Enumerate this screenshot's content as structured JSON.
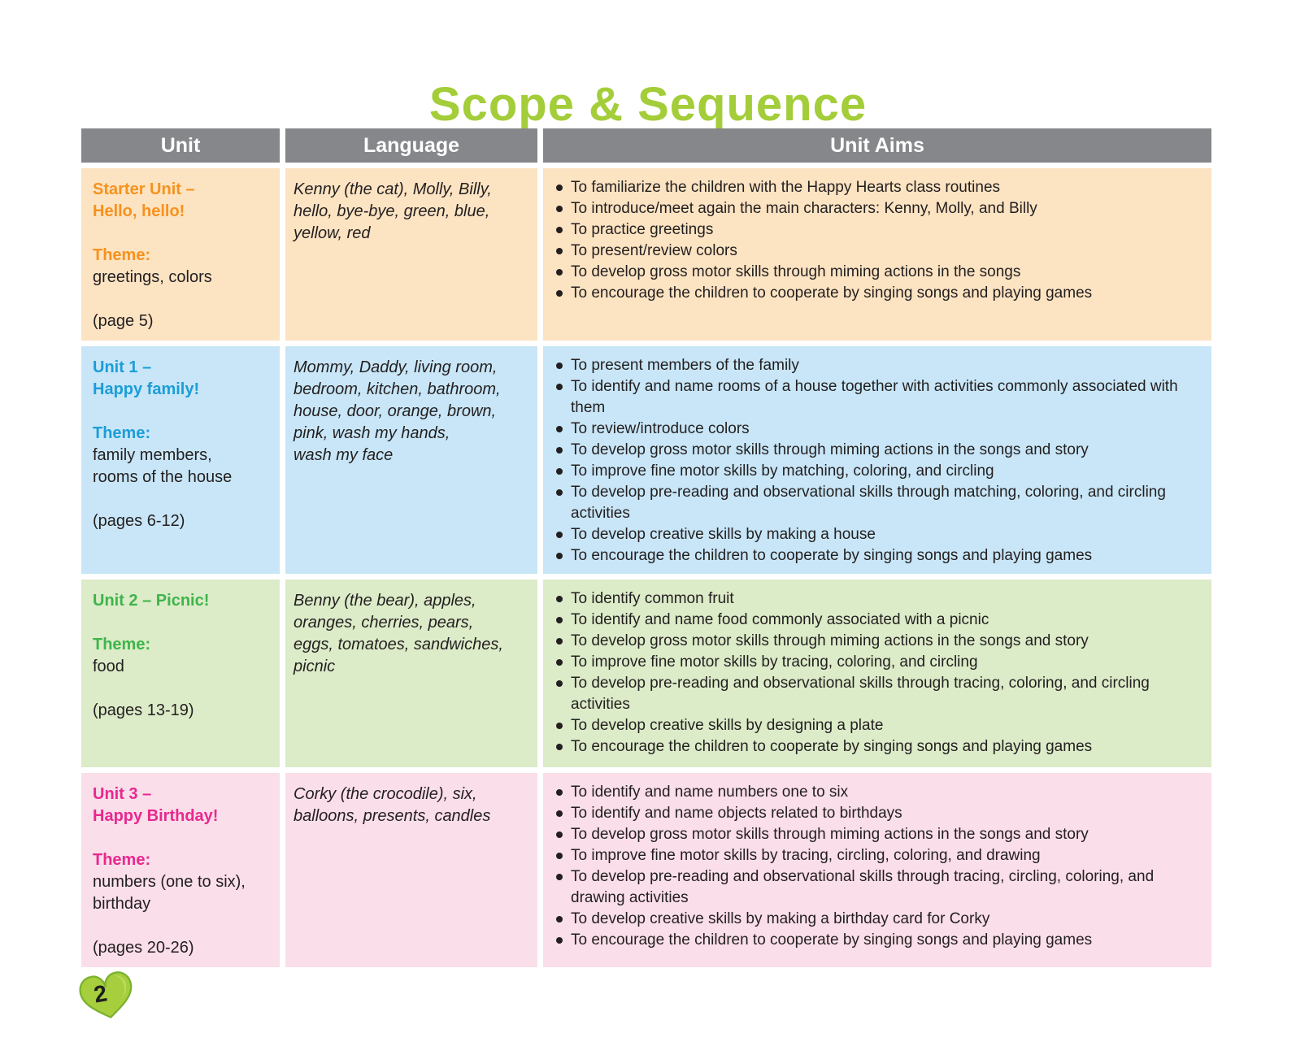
{
  "page": {
    "title": "Scope & Sequence",
    "page_number": "2"
  },
  "colors": {
    "title_green": "#a3cd39",
    "header_bg": "#85878a",
    "header_text": "#ffffff",
    "body_text": "#231f20",
    "heart_fill": "#a6ce3d",
    "heart_stroke": "#79b12e"
  },
  "table": {
    "headers": [
      "Unit",
      "Language",
      "Unit Aims"
    ],
    "rows": [
      {
        "bg": "#fce3c2",
        "accent": "#f6921e",
        "unit_title": "Starter Unit –\nHello, hello!",
        "theme_label": "Theme:",
        "theme": "greetings, colors",
        "pages": "(page 5)",
        "language": "Kenny (the cat), Molly, Billy,\nhello, bye-bye, green, blue,\nyellow, red",
        "aims": [
          "To familiarize the children with the Happy Hearts class routines",
          "To introduce/meet again the main characters: Kenny, Molly, and Billy",
          "To practice greetings",
          "To present/review colors",
          "To develop gross motor skills through miming actions in the songs",
          "To encourage the children to cooperate by singing songs and playing games"
        ]
      },
      {
        "bg": "#c8e6f7",
        "accent": "#1b9dd9",
        "unit_title": "Unit 1 –\nHappy family!",
        "theme_label": "Theme:",
        "theme": "family members,\nrooms of the house",
        "pages": "(pages 6-12)",
        "language": "Mommy, Daddy, living room,\nbedroom, kitchen, bathroom,\nhouse, door, orange, brown,\npink, wash my hands,\nwash my face",
        "aims": [
          "To present members of the family",
          "To identify and name rooms of a house together with activities commonly associated with them",
          "To review/introduce colors",
          "To develop gross motor skills through miming actions in the songs and story",
          "To improve fine motor skills by matching, coloring, and circling",
          "To develop pre-reading and observational skills through matching, coloring, and circling activities",
          "To develop creative skills by making a house",
          "To encourage the children to cooperate by singing songs and playing games"
        ]
      },
      {
        "bg": "#dcebc8",
        "accent": "#3eb54b",
        "unit_title": "Unit 2 – Picnic!",
        "theme_label": "Theme:",
        "theme": "food",
        "pages": "(pages 13-19)",
        "language": "Benny (the bear), apples,\noranges, cherries, pears,\neggs, tomatoes, sandwiches,\npicnic",
        "aims": [
          "To identify common fruit",
          "To identify and name food commonly associated with a picnic",
          "To develop gross motor skills through miming actions in the songs and story",
          "To improve fine motor skills by tracing, coloring, and circling",
          "To develop pre-reading and observational skills through tracing, coloring, and circling activities",
          "To develop creative skills by designing a plate",
          "To encourage the children to cooperate by singing songs and playing games"
        ]
      },
      {
        "bg": "#fadee9",
        "accent": "#e9288f",
        "unit_title": "Unit 3 –\nHappy Birthday!",
        "theme_label": "Theme:",
        "theme": "numbers (one to six),\nbirthday",
        "pages": "(pages 20-26)",
        "language": "Corky (the crocodile), six,\nballoons, presents, candles",
        "aims": [
          "To identify and name numbers one to six",
          "To identify and name objects related to birthdays",
          "To develop gross motor skills through miming actions in the songs and story",
          "To improve fine motor skills by tracing, circling, coloring, and drawing",
          "To develop pre-reading and observational skills through tracing, circling, coloring, and drawing activities",
          "To develop creative skills by making a birthday card for Corky",
          "To encourage the children to cooperate by singing songs and playing games"
        ]
      }
    ]
  }
}
